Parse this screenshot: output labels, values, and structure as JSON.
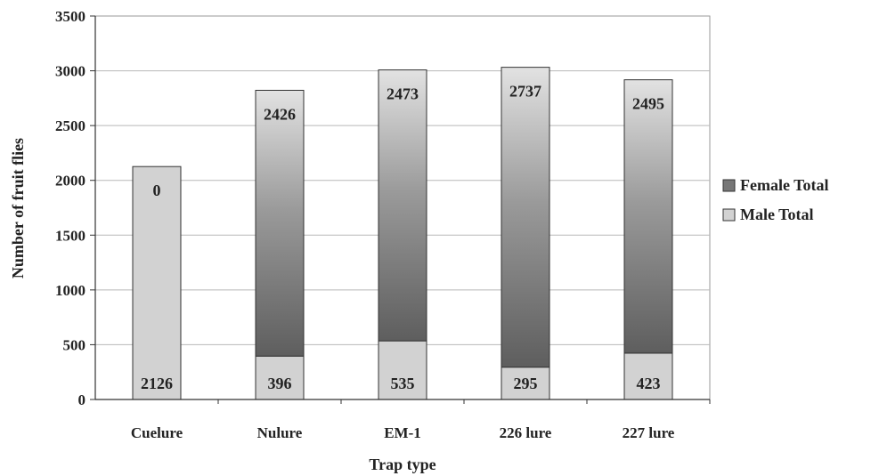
{
  "chart_data": {
    "type": "bar",
    "stacked": true,
    "categories": [
      "Cuelure",
      "Nulure",
      "EM-1",
      "226 lure",
      "227 lure"
    ],
    "series": [
      {
        "name": "Male Total",
        "values": [
          2126,
          396,
          535,
          295,
          423
        ],
        "color": "#d2d2d2"
      },
      {
        "name": "Female Total",
        "values": [
          0,
          2426,
          2473,
          2737,
          2495
        ],
        "color": "#707070"
      }
    ],
    "title": "",
    "xlabel": "Trap type",
    "ylabel": "Number of fruit flies",
    "ylim": [
      0,
      3500
    ],
    "yticks": [
      0,
      500,
      1000,
      1500,
      2000,
      2500,
      3000,
      3500
    ],
    "grid": true,
    "legend_position": "right",
    "legend_order": [
      "Female Total",
      "Male Total"
    ]
  }
}
